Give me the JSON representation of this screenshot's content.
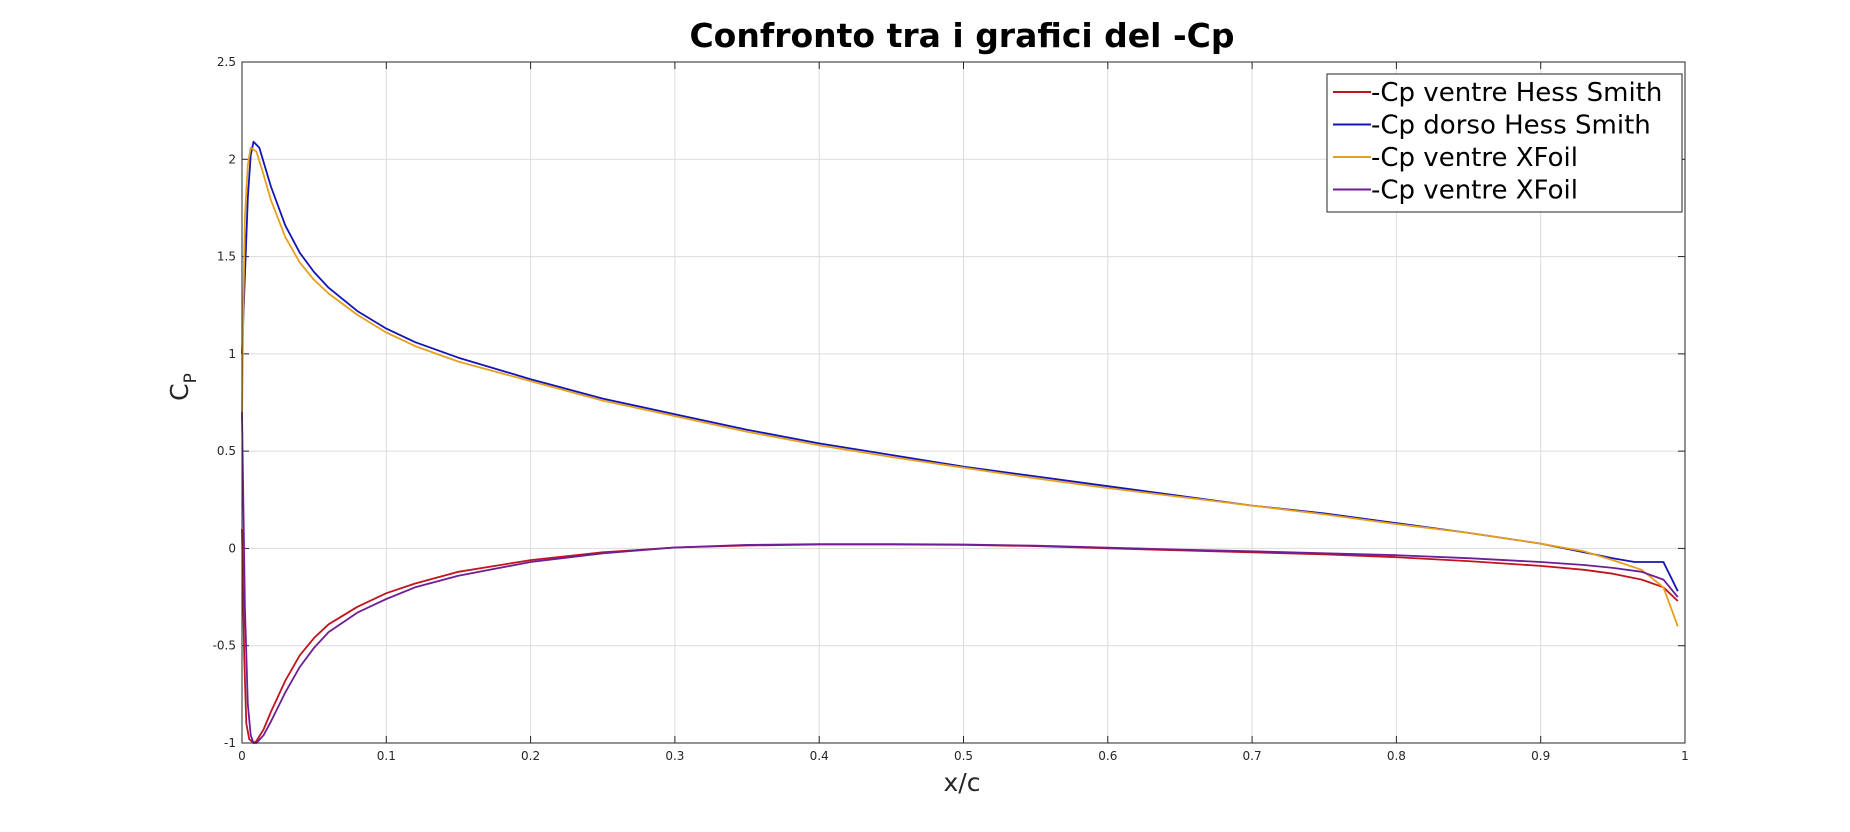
{
  "chart_data": {
    "type": "line",
    "title": "Confronto tra i grafici del -Cp",
    "xlabel": "x/c",
    "ylabel_main": "C",
    "ylabel_sub": "P",
    "xlim": [
      0,
      1
    ],
    "ylim": [
      -1,
      2.5
    ],
    "xticks": [
      0,
      0.1,
      0.2,
      0.3,
      0.4,
      0.5,
      0.6,
      0.7,
      0.8,
      0.9,
      1
    ],
    "xtick_labels": [
      "0",
      "0.1",
      "0.2",
      "0.3",
      "0.4",
      "0.5",
      "0.6",
      "0.7",
      "0.8",
      "0.9",
      "1"
    ],
    "yticks": [
      -1,
      -0.5,
      0,
      0.5,
      1,
      1.5,
      2,
      2.5
    ],
    "ytick_labels": [
      "-1",
      "-0.5",
      "0",
      "0.5",
      "1",
      "1.5",
      "2",
      "2.5"
    ],
    "grid": true,
    "legend_position": "top-right",
    "series": [
      {
        "name": "-Cp ventre Hess Smith",
        "color": "#c0141e",
        "x": [
          0,
          0.0015,
          0.003,
          0.005,
          0.008,
          0.01,
          0.015,
          0.02,
          0.03,
          0.04,
          0.05,
          0.06,
          0.08,
          0.1,
          0.12,
          0.15,
          0.2,
          0.25,
          0.3,
          0.35,
          0.4,
          0.45,
          0.5,
          0.55,
          0.6,
          0.65,
          0.7,
          0.75,
          0.8,
          0.85,
          0.9,
          0.93,
          0.95,
          0.97,
          0.985,
          0.995
        ],
        "y": [
          0.1,
          -0.55,
          -0.9,
          -0.98,
          -1.0,
          -0.99,
          -0.93,
          -0.84,
          -0.68,
          -0.55,
          -0.46,
          -0.39,
          -0.3,
          -0.23,
          -0.18,
          -0.12,
          -0.06,
          -0.02,
          0.005,
          0.015,
          0.02,
          0.02,
          0.018,
          0.012,
          0.0,
          -0.01,
          -0.02,
          -0.03,
          -0.045,
          -0.065,
          -0.09,
          -0.11,
          -0.13,
          -0.16,
          -0.2,
          -0.27
        ]
      },
      {
        "name": "-Cp dorso Hess Smith",
        "color": "#1414b4",
        "x": [
          0,
          0.002,
          0.004,
          0.006,
          0.008,
          0.012,
          0.02,
          0.03,
          0.04,
          0.05,
          0.06,
          0.08,
          0.1,
          0.12,
          0.15,
          0.2,
          0.25,
          0.3,
          0.35,
          0.4,
          0.45,
          0.5,
          0.55,
          0.6,
          0.65,
          0.7,
          0.75,
          0.8,
          0.85,
          0.9,
          0.93,
          0.95,
          0.965,
          0.985,
          0.995
        ],
        "y": [
          1.0,
          1.4,
          1.8,
          2.02,
          2.09,
          2.06,
          1.86,
          1.66,
          1.52,
          1.42,
          1.34,
          1.22,
          1.13,
          1.06,
          0.98,
          0.87,
          0.77,
          0.69,
          0.61,
          0.54,
          0.48,
          0.42,
          0.37,
          0.32,
          0.27,
          0.22,
          0.18,
          0.13,
          0.08,
          0.025,
          -0.02,
          -0.05,
          -0.07,
          -0.07,
          -0.22
        ]
      },
      {
        "name": "-Cp ventre XFoil",
        "color": "#e6a01e",
        "x": [
          0,
          0.001,
          0.002,
          0.004,
          0.006,
          0.01,
          0.015,
          0.02,
          0.03,
          0.04,
          0.05,
          0.06,
          0.08,
          0.1,
          0.12,
          0.15,
          0.2,
          0.25,
          0.3,
          0.35,
          0.4,
          0.45,
          0.5,
          0.55,
          0.6,
          0.65,
          0.7,
          0.75,
          0.8,
          0.85,
          0.9,
          0.93,
          0.95,
          0.97,
          0.985,
          0.995
        ],
        "y": [
          0.65,
          1.25,
          1.7,
          1.97,
          2.06,
          2.04,
          1.92,
          1.79,
          1.6,
          1.47,
          1.38,
          1.31,
          1.2,
          1.11,
          1.04,
          0.96,
          0.86,
          0.76,
          0.68,
          0.6,
          0.53,
          0.47,
          0.415,
          0.36,
          0.31,
          0.265,
          0.22,
          0.175,
          0.125,
          0.08,
          0.025,
          -0.015,
          -0.06,
          -0.11,
          -0.2,
          -0.4
        ]
      },
      {
        "name": "-Cp ventre XFoil",
        "color": "#6e1e96",
        "x": [
          0,
          0.002,
          0.004,
          0.006,
          0.008,
          0.01,
          0.015,
          0.02,
          0.03,
          0.04,
          0.05,
          0.06,
          0.08,
          0.1,
          0.12,
          0.15,
          0.2,
          0.25,
          0.3,
          0.35,
          0.4,
          0.45,
          0.5,
          0.55,
          0.6,
          0.65,
          0.7,
          0.75,
          0.8,
          0.85,
          0.9,
          0.93,
          0.95,
          0.97,
          0.985,
          0.995
        ],
        "y": [
          0.7,
          -0.3,
          -0.8,
          -0.96,
          -1.0,
          -1.0,
          -0.96,
          -0.89,
          -0.74,
          -0.61,
          -0.51,
          -0.43,
          -0.33,
          -0.26,
          -0.2,
          -0.14,
          -0.07,
          -0.025,
          0.005,
          0.018,
          0.022,
          0.022,
          0.02,
          0.014,
          0.004,
          -0.006,
          -0.015,
          -0.025,
          -0.035,
          -0.05,
          -0.07,
          -0.085,
          -0.1,
          -0.12,
          -0.16,
          -0.25
        ]
      }
    ]
  }
}
